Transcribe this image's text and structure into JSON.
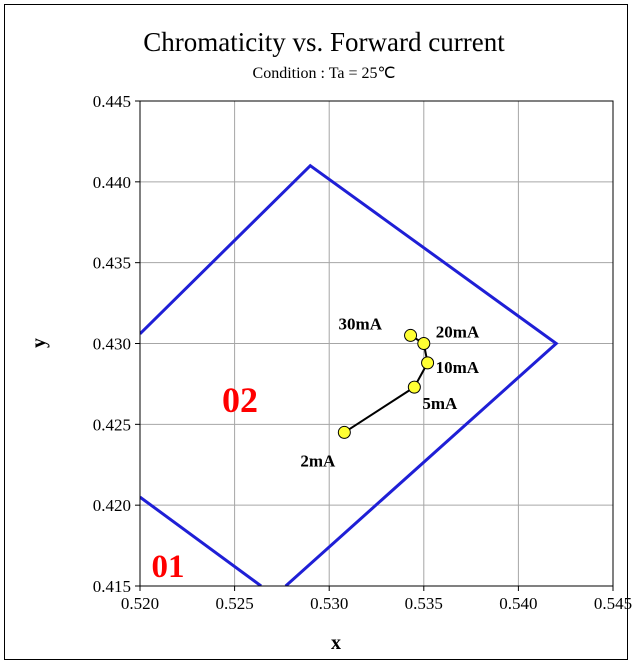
{
  "chart_data": {
    "type": "scatter",
    "title": "Chromaticity vs. Forward current",
    "subtitle": "Condition : Ta = 25℃",
    "xlabel": "x",
    "ylabel": "y",
    "xlim": [
      0.52,
      0.545
    ],
    "ylim": [
      0.415,
      0.445
    ],
    "x_ticks": [
      "0.520",
      "0.525",
      "0.530",
      "0.535",
      "0.540",
      "0.545"
    ],
    "y_ticks": [
      "0.415",
      "0.420",
      "0.425",
      "0.430",
      "0.435",
      "0.440",
      "0.445"
    ],
    "grid": true,
    "series": [
      {
        "x": [
          0.5308,
          0.5345,
          0.5352,
          0.535,
          0.5343
        ],
        "y": [
          0.4245,
          0.4273,
          0.4288,
          0.43,
          0.4305
        ],
        "labels": [
          "2mA",
          "5mA",
          "10mA",
          "20mA",
          "30mA"
        ],
        "color": "#ffff33",
        "line_color": "#000000"
      }
    ],
    "regions": [
      {
        "label": "02",
        "color": "#ff0000",
        "border_color": "#1f1fd6",
        "polygon": [
          [
            0.52,
            0.4306
          ],
          [
            0.529,
            0.441
          ],
          [
            0.542,
            0.43
          ],
          [
            0.5277,
            0.415
          ]
        ]
      },
      {
        "label": "01",
        "color": "#ff0000",
        "border_color": "#1f1fd6",
        "polygon": [
          [
            0.52,
            0.4205
          ],
          [
            0.5264,
            0.415
          ]
        ]
      }
    ]
  }
}
